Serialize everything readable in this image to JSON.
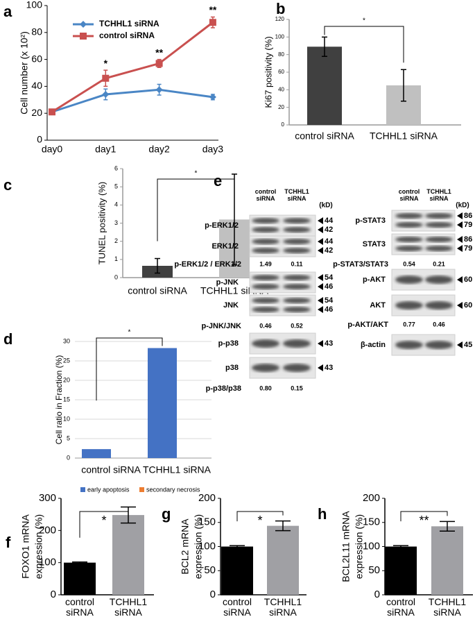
{
  "chart_data": [
    {
      "type": "line",
      "panel": "a",
      "ylabel": "Cell number (x 10²)",
      "categories": [
        "day0",
        "day1",
        "day2",
        "day3"
      ],
      "series": [
        {
          "name": "TCHHL1 siRNA",
          "color": "#4a86c5",
          "marker": "diamond",
          "values": [
            21,
            34,
            37.5,
            32
          ],
          "errors": [
            2,
            4,
            4,
            2
          ]
        },
        {
          "name": "control siRNA",
          "color": "#c9504f",
          "marker": "square",
          "values": [
            21,
            46,
            57,
            87.5
          ],
          "errors": [
            2,
            6,
            3,
            4
          ]
        }
      ],
      "significance": [
        null,
        "*",
        "**",
        "**"
      ],
      "ylim": [
        0,
        100
      ],
      "yticks": [
        0,
        20,
        40,
        60,
        80,
        100
      ],
      "legend": "upper left"
    },
    {
      "type": "bar",
      "panel": "b",
      "ylabel": "Ki67 positivity (%)",
      "categories": [
        "control siRNA",
        "TCHHL1 siRNA"
      ],
      "values": [
        89,
        45
      ],
      "errors": [
        11,
        18
      ],
      "colors": [
        "#404040",
        "#c0c0c0"
      ],
      "significance": "*",
      "ylim": [
        0,
        120
      ],
      "yticks": [
        0,
        20,
        40,
        60,
        80,
        100,
        120
      ]
    },
    {
      "type": "bar",
      "panel": "c",
      "ylabel": "TUNEL positivity (%)",
      "categories": [
        "control siRNA",
        "TCHHL1 siRNA"
      ],
      "values": [
        0.65,
        3.2
      ],
      "errors": [
        0.4,
        2.5
      ],
      "colors": [
        "#404040",
        "#c0c0c0"
      ],
      "significance": "*",
      "ylim": [
        0,
        6
      ],
      "yticks": [
        0,
        1,
        2,
        3,
        4,
        5,
        6
      ]
    },
    {
      "type": "bar",
      "panel": "d",
      "ylabel": "Cell ratio in Fraction (%)",
      "categories": [
        "control siRNA",
        "TCHHL1 siRNA"
      ],
      "series": [
        {
          "name": "early apoptosis",
          "color": "#4472c4",
          "values": [
            2.3,
            28.3
          ]
        },
        {
          "name": "secondary necrosis",
          "color": "#ed7d31",
          "values": [
            0,
            0
          ]
        }
      ],
      "significance": "*",
      "ylim": [
        0,
        30
      ],
      "yticks": [
        0,
        5,
        10,
        15,
        20,
        25,
        30
      ],
      "grid": true,
      "legend": "bottom"
    },
    {
      "type": "bar",
      "panel": "f",
      "ylabel": [
        "FOXO1 mRNA",
        "expression (%)"
      ],
      "categories": [
        "control siRNA",
        "TCHHL1 siRNA"
      ],
      "values": [
        100,
        248
      ],
      "errors": [
        2,
        25
      ],
      "colors": [
        "#000000",
        "#a0a0a4"
      ],
      "significance": "*",
      "ylim": [
        0,
        300
      ],
      "yticks": [
        0,
        100,
        200,
        300
      ]
    },
    {
      "type": "bar",
      "panel": "g",
      "ylabel": [
        "BCL2 mRNA",
        "expression (%)"
      ],
      "categories": [
        "control siRNA",
        "TCHHL1 siRNA"
      ],
      "values": [
        100,
        143
      ],
      "errors": [
        2,
        10
      ],
      "colors": [
        "#000000",
        "#a0a0a4"
      ],
      "significance": "*",
      "ylim": [
        0,
        200
      ],
      "yticks": [
        0,
        50,
        100,
        150,
        200
      ]
    },
    {
      "type": "bar",
      "panel": "h",
      "ylabel": [
        "BCL2L11 mRNA",
        "expression (%)"
      ],
      "categories": [
        "control siRNA",
        "TCHHL1 siRNA"
      ],
      "values": [
        100,
        142
      ],
      "errors": [
        2,
        10
      ],
      "colors": [
        "#000000",
        "#a0a0a4"
      ],
      "significance": "**",
      "ylim": [
        0,
        200
      ],
      "yticks": [
        0,
        50,
        100,
        150,
        200
      ]
    }
  ],
  "blot": {
    "panel": "e",
    "columns": [
      {
        "lanes": [
          "control siRNA",
          "TCHHL1 siRNA"
        ],
        "unit": "(kD)",
        "rows": [
          {
            "label": "p-ERK1/2",
            "markers": [
              "44",
              "42"
            ]
          },
          {
            "label": "ERK1/2",
            "markers": [
              "44",
              "42"
            ]
          },
          {
            "label": "p-ERK1/2 / ERK1/2",
            "values": [
              "1.49",
              "0.11"
            ]
          },
          {
            "label": "p-JNK",
            "markers": [
              "54",
              "46"
            ]
          },
          {
            "label": "JNK",
            "markers": [
              "54",
              "46"
            ]
          },
          {
            "label": "p-JNK/JNK",
            "values": [
              "0.46",
              "0.52"
            ]
          },
          {
            "label": "p-p38",
            "markers": [
              "43"
            ]
          },
          {
            "label": "p38",
            "markers": [
              "43"
            ]
          },
          {
            "label": "p-p38/p38",
            "values": [
              "0.80",
              "0.15"
            ]
          }
        ]
      },
      {
        "lanes": [
          "control siRNA",
          "TCHHL1 siRNA"
        ],
        "unit": "(kD)",
        "rows": [
          {
            "label": "p-STAT3",
            "markers": [
              "86",
              "79"
            ]
          },
          {
            "label": "STAT3",
            "markers": [
              "86",
              "79"
            ]
          },
          {
            "label": "p-STAT3/STAT3",
            "values": [
              "0.54",
              "0.21"
            ]
          },
          {
            "label": "p-AKT",
            "markers": [
              "60"
            ]
          },
          {
            "label": "AKT",
            "markers": [
              "60"
            ]
          },
          {
            "label": "p-AKT/AKT",
            "values": [
              "0.77",
              "0.46"
            ]
          },
          {
            "label": "β-actin",
            "markers": [
              "45"
            ]
          }
        ]
      }
    ]
  }
}
